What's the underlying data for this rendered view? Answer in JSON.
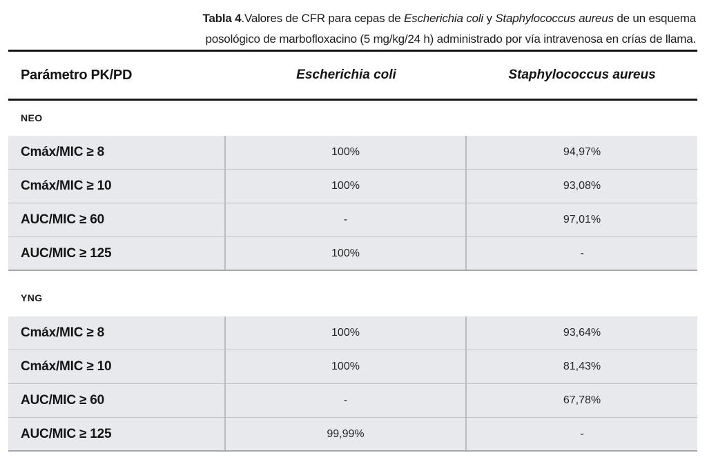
{
  "caption": {
    "line1": {
      "label": "Tabla 4",
      "after_label": ".",
      "text_a": "Valores de CFR para cepas de ",
      "species_1": "Escherichia coli",
      "text_b": " y ",
      "species_2": "Staphylococcus aureus",
      "text_c": " de un esquema"
    },
    "line2": "posológico de marbofloxacino (5 mg/kg/24 h) administrado por vía intravenosa en crías de llama."
  },
  "table": {
    "header": {
      "col1": "Parámetro PK/PD",
      "col2": "Escherichia coli",
      "col3": "Staphylococcus aureus"
    },
    "sections": [
      {
        "label": "NEO",
        "rows": [
          {
            "param": "Cmáx/MIC ≥ 8",
            "ecoli": "100%",
            "saureus": "94,97%"
          },
          {
            "param": "Cmáx/MIC ≥ 10",
            "ecoli": "100%",
            "saureus": "93,08%"
          },
          {
            "param": "AUC/MIC ≥ 60",
            "ecoli": "-",
            "saureus": "97,01%"
          },
          {
            "param": "AUC/MIC ≥ 125",
            "ecoli": "100%",
            "saureus": "-"
          }
        ]
      },
      {
        "label": "YNG",
        "rows": [
          {
            "param": "Cmáx/MIC ≥ 8",
            "ecoli": "100%",
            "saureus": "93,64%"
          },
          {
            "param": "Cmáx/MIC ≥ 10",
            "ecoli": "100%",
            "saureus": "81,43%"
          },
          {
            "param": "AUC/MIC ≥ 60",
            "ecoli": "-",
            "saureus": "67,78%"
          },
          {
            "param": "AUC/MIC ≥ 125",
            "ecoli": "99,99%",
            "saureus": "-"
          }
        ]
      }
    ]
  },
  "colors": {
    "row_background": "#e8e9ec",
    "rule": "#141414",
    "cell_divider": "#b9bbbf"
  }
}
